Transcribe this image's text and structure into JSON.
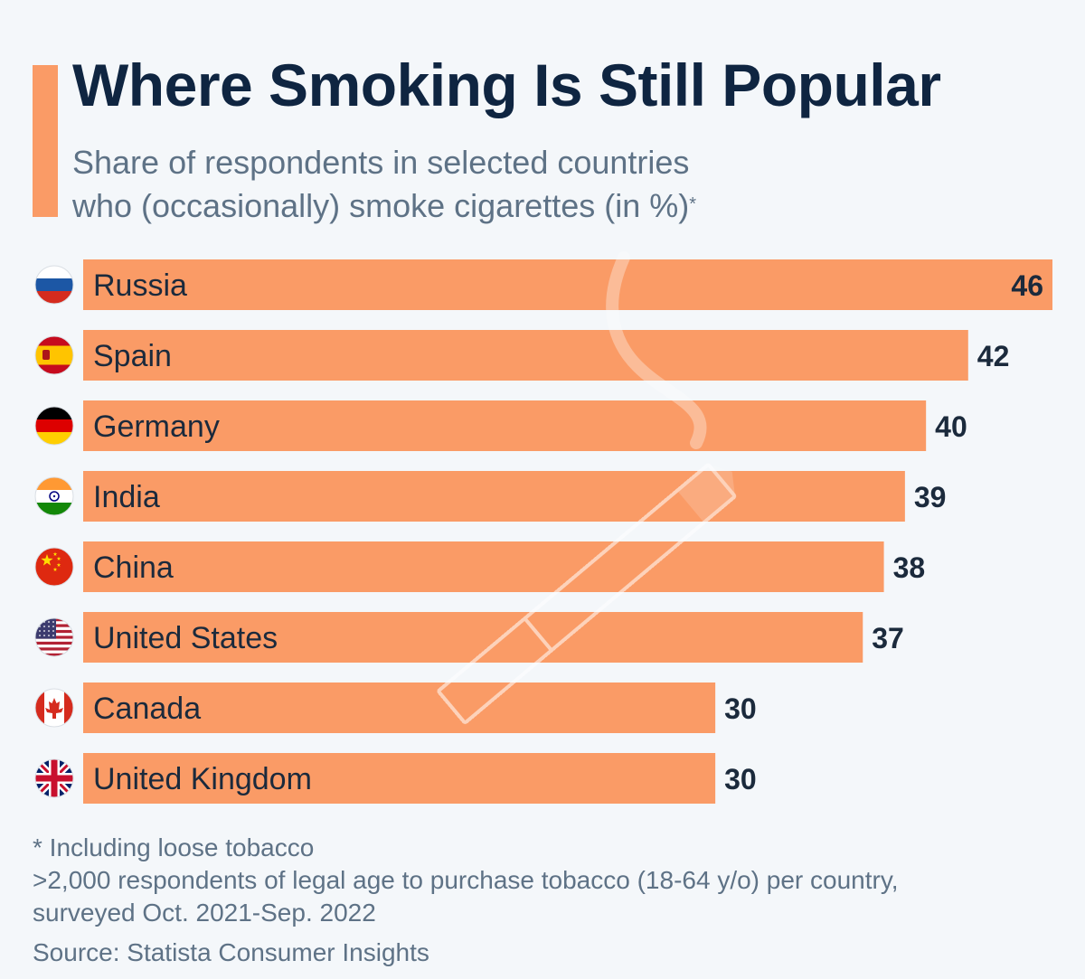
{
  "header": {
    "title": "Where Smoking Is Still Popular",
    "subtitle_line1": "Share of respondents in selected countries",
    "subtitle_line2": "who (occasionally) smoke cigarettes (in %)",
    "subtitle_marker": "*"
  },
  "footer": {
    "note": "* Including loose tobacco",
    "method_line1": ">2,000 respondents of legal age to purchase tobacco (18-64 y/o) per country,",
    "method_line2": "surveyed Oct. 2021-Sep. 2022",
    "source": "Source: Statista Consumer Insights"
  },
  "colors": {
    "bar": "#fa9b66",
    "title": "#0f2541",
    "text": "#1b2a3c",
    "muted": "#5e7286",
    "background": "#f4f7fa"
  },
  "chart_data": {
    "type": "bar",
    "orientation": "horizontal",
    "categories": [
      "Russia",
      "Spain",
      "Germany",
      "India",
      "China",
      "United States",
      "Canada",
      "United Kingdom"
    ],
    "values": [
      46,
      42,
      40,
      39,
      38,
      37,
      30,
      30
    ],
    "flags": [
      "russia-flag-icon",
      "spain-flag-icon",
      "germany-flag-icon",
      "india-flag-icon",
      "china-flag-icon",
      "usa-flag-icon",
      "canada-flag-icon",
      "uk-flag-icon"
    ],
    "xlim": [
      0,
      46
    ],
    "grid": false,
    "legend": "none"
  }
}
